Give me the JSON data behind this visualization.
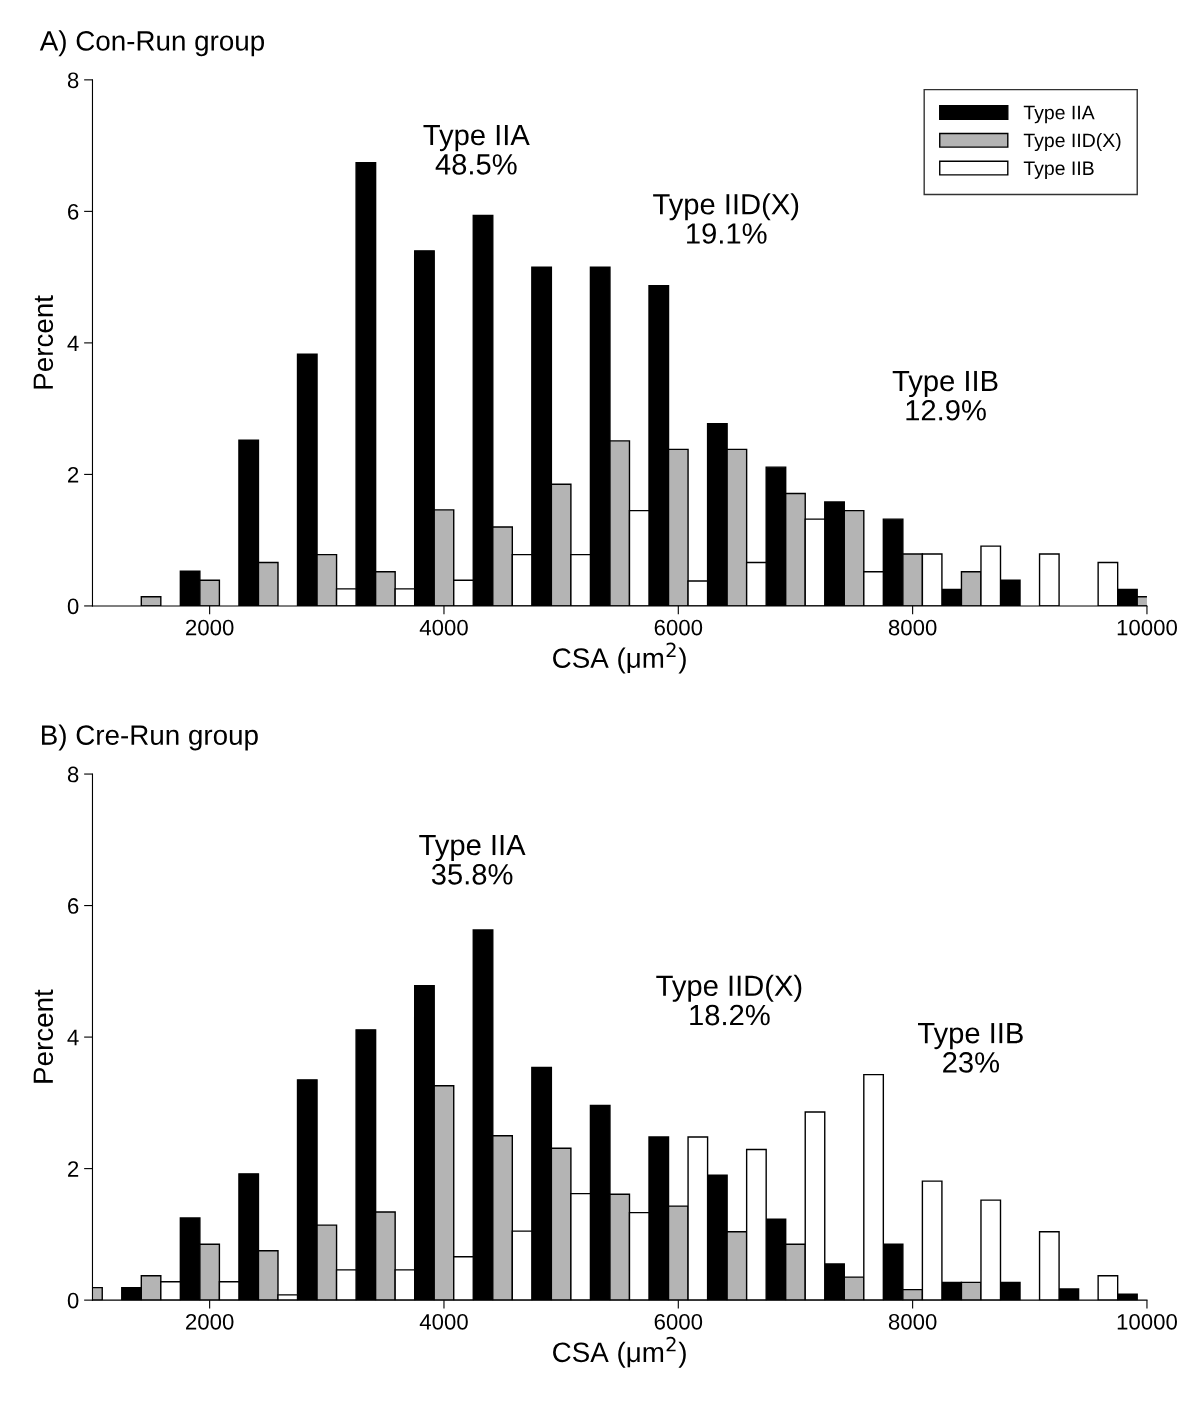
{
  "chart_data": [
    {
      "type": "bar",
      "title": "A) Con-Run group",
      "xlabel": "CSA (μm$^{2}$)",
      "ylabel": "Percent",
      "x": [
        1500,
        2000,
        2500,
        3000,
        3500,
        4000,
        4500,
        5000,
        5500,
        6000,
        6500,
        7000,
        7500,
        8000,
        8500,
        9000,
        9500,
        10000
      ],
      "series": [
        {
          "name": "Type IIA",
          "color": "#000000",
          "values": [
            null,
            0.53,
            2.52,
            3.83,
            6.74,
            5.4,
            5.94,
            5.15,
            5.15,
            4.87,
            2.77,
            2.11,
            1.58,
            1.32,
            0.25,
            0.39,
            null,
            0.25
          ]
        },
        {
          "name": "Type IID(X)",
          "color": "#b4b4b4",
          "values": [
            0.14,
            0.39,
            0.66,
            0.78,
            0.52,
            1.46,
            1.2,
            1.85,
            2.51,
            2.38,
            2.38,
            1.71,
            1.45,
            0.79,
            0.52,
            null,
            null,
            0.14
          ]
        },
        {
          "name": "Type IIB",
          "color": "#ffffff",
          "values": [
            null,
            null,
            null,
            0.26,
            0.26,
            0.39,
            0.78,
            0.78,
            1.45,
            0.38,
            0.66,
            1.32,
            0.52,
            0.79,
            0.91,
            0.79,
            0.66,
            null
          ]
        }
      ],
      "xlim": [
        1000,
        10000
      ],
      "xticks": [
        2000,
        4000,
        6000,
        8000,
        10000
      ],
      "ylim": [
        0,
        8
      ],
      "yticks": [
        0,
        2,
        4,
        6,
        8
      ],
      "grid": false,
      "legend": "top right",
      "annotations": [
        "Type IIA\n48.5%",
        "Type IID(X)\n19.1%",
        "Type IIB\n12.9%"
      ]
    },
    {
      "type": "bar",
      "title": "B) Cre-Run group",
      "xlabel": "CSA (μm$^{2}$)",
      "ylabel": "Percent",
      "x": [
        1000,
        1500,
        2000,
        2500,
        3000,
        3500,
        4000,
        4500,
        5000,
        5500,
        6000,
        6500,
        7000,
        7500,
        8000,
        8500,
        9000,
        9500,
        10000
      ],
      "series": [
        {
          "color": "#000000",
          "values": [
            null,
            0.19,
            1.25,
            1.92,
            3.35,
            4.11,
            4.78,
            5.63,
            3.54,
            2.96,
            2.48,
            1.9,
            1.23,
            0.55,
            0.85,
            0.27,
            0.27,
            0.17,
            0.09
          ]
        },
        {
          "color": "#b4b4b4",
          "values": [
            0.19,
            0.37,
            0.85,
            0.75,
            1.14,
            1.34,
            3.26,
            2.5,
            2.31,
            1.61,
            1.43,
            1.04,
            0.85,
            0.35,
            0.16,
            0.27,
            null,
            null,
            null
          ]
        },
        {
          "color": "#ffffff",
          "values": [
            null,
            0.28,
            0.28,
            0.08,
            0.46,
            0.46,
            0.66,
            1.05,
            1.62,
            1.33,
            2.48,
            2.29,
            2.86,
            3.43,
            1.81,
            1.52,
            1.04,
            0.37,
            null
          ]
        }
      ],
      "xlim": [
        1000,
        10000
      ],
      "xticks": [
        2000,
        4000,
        6000,
        8000,
        10000
      ],
      "ylim": [
        0,
        8
      ],
      "yticks": [
        0,
        2,
        4,
        6,
        8
      ],
      "grid": false,
      "legend": false,
      "annotations": [
        "Type IIA\n35.8%",
        "Type IID(X)\n18.2%",
        "Type IIB\n23%"
      ]
    }
  ]
}
